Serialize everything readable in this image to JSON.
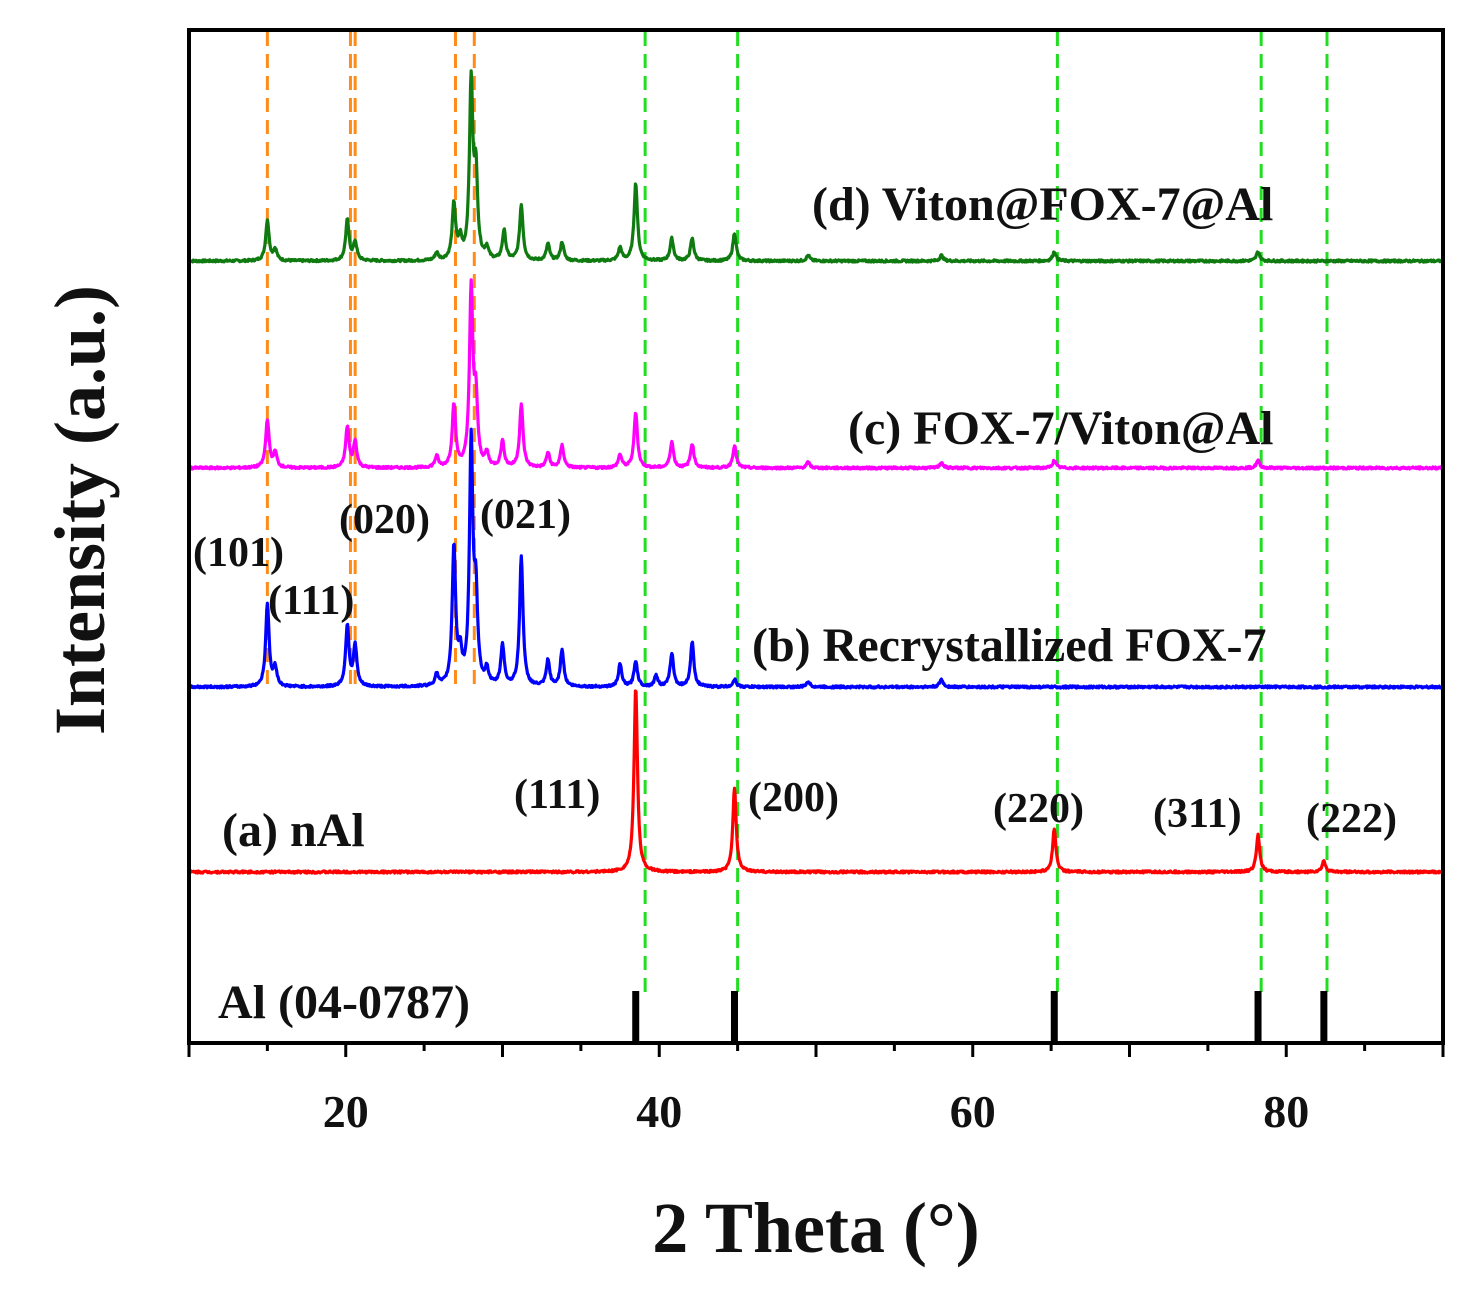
{
  "chart_data": {
    "type": "line",
    "title": "",
    "xlabel": "2 Theta (°)",
    "ylabel": "Intensity (a.u.)",
    "xlim": [
      10,
      90
    ],
    "xticks": [
      20,
      40,
      60,
      80
    ],
    "grid": false,
    "series": [
      {
        "name": "(d) Viton@FOX-7@Al",
        "color": "#0f7a0f",
        "baseline": 4,
        "peaks": [
          [
            15.0,
            0.22
          ],
          [
            15.5,
            0.06
          ],
          [
            20.1,
            0.22
          ],
          [
            20.6,
            0.1
          ],
          [
            25.8,
            0.04
          ],
          [
            26.9,
            0.3
          ],
          [
            27.3,
            0.1
          ],
          [
            28.0,
            0.95
          ],
          [
            28.3,
            0.45
          ],
          [
            29.0,
            0.06
          ],
          [
            30.1,
            0.16
          ],
          [
            31.2,
            0.3
          ],
          [
            32.9,
            0.09
          ],
          [
            33.8,
            0.1
          ],
          [
            37.5,
            0.07
          ],
          [
            38.5,
            0.42
          ],
          [
            40.8,
            0.12
          ],
          [
            42.1,
            0.12
          ],
          [
            44.8,
            0.15
          ],
          [
            49.5,
            0.03
          ],
          [
            58.0,
            0.03
          ],
          [
            65.2,
            0.05
          ],
          [
            78.2,
            0.05
          ]
        ]
      },
      {
        "name": "(c) FOX-7/Viton@Al",
        "color": "#ff00ff",
        "baseline": 3,
        "peaks": [
          [
            15.0,
            0.26
          ],
          [
            15.5,
            0.08
          ],
          [
            20.1,
            0.22
          ],
          [
            20.6,
            0.14
          ],
          [
            25.8,
            0.06
          ],
          [
            26.9,
            0.34
          ],
          [
            28.0,
            0.95
          ],
          [
            28.3,
            0.35
          ],
          [
            29.0,
            0.07
          ],
          [
            30.0,
            0.14
          ],
          [
            31.2,
            0.34
          ],
          [
            32.9,
            0.08
          ],
          [
            33.8,
            0.12
          ],
          [
            37.5,
            0.07
          ],
          [
            38.5,
            0.3
          ],
          [
            40.8,
            0.14
          ],
          [
            42.1,
            0.13
          ],
          [
            44.8,
            0.12
          ],
          [
            49.5,
            0.03
          ],
          [
            58.0,
            0.03
          ],
          [
            65.2,
            0.04
          ],
          [
            78.2,
            0.04
          ]
        ]
      },
      {
        "name": "(b) Recrystallized FOX-7",
        "color": "#0000ff",
        "baseline": 2,
        "peaks": [
          [
            15.0,
            0.45
          ],
          [
            15.5,
            0.1
          ],
          [
            20.1,
            0.33
          ],
          [
            20.6,
            0.22
          ],
          [
            25.8,
            0.06
          ],
          [
            26.9,
            0.75
          ],
          [
            27.3,
            0.15
          ],
          [
            28.0,
            1.3
          ],
          [
            28.3,
            0.45
          ],
          [
            29.0,
            0.08
          ],
          [
            30.0,
            0.22
          ],
          [
            31.2,
            0.7
          ],
          [
            32.9,
            0.14
          ],
          [
            33.8,
            0.2
          ],
          [
            37.5,
            0.12
          ],
          [
            38.5,
            0.14
          ],
          [
            39.8,
            0.06
          ],
          [
            40.8,
            0.18
          ],
          [
            42.1,
            0.24
          ],
          [
            44.8,
            0.04
          ],
          [
            49.5,
            0.03
          ],
          [
            58.0,
            0.04
          ]
        ]
      },
      {
        "name": "(a) nAl",
        "color": "#ff0000",
        "baseline": 1,
        "peaks": [
          [
            38.5,
            1.0
          ],
          [
            44.8,
            0.45
          ],
          [
            65.2,
            0.23
          ],
          [
            78.2,
            0.2
          ],
          [
            82.4,
            0.06
          ]
        ]
      }
    ],
    "reference": {
      "name": "Al (04-0787)",
      "color": "#000000",
      "lines": [
        38.5,
        44.8,
        65.2,
        78.2,
        82.4
      ]
    },
    "guide_lines": {
      "orange": [
        15.0,
        20.3,
        20.6,
        27.0,
        28.2
      ],
      "green": [
        39.1,
        45.0,
        65.4,
        78.4,
        82.6
      ],
      "orange_color": "#ff8c1a",
      "green_color": "#22dd22"
    },
    "annotations": [
      {
        "text": "(101)",
        "x": 13.8
      },
      {
        "text": "(111)",
        "x": 19.0
      },
      {
        "text": "(020)",
        "x": 23.3
      },
      {
        "text": "(021)",
        "x": 31.0
      },
      {
        "text": "(111)",
        "x": 35.5
      },
      {
        "text": "(200)",
        "x": 49.3
      },
      {
        "text": "(220)",
        "x": 64.9
      },
      {
        "text": "(311)",
        "x": 74.2
      },
      {
        "text": "(222)",
        "x": 84.8
      }
    ]
  }
}
